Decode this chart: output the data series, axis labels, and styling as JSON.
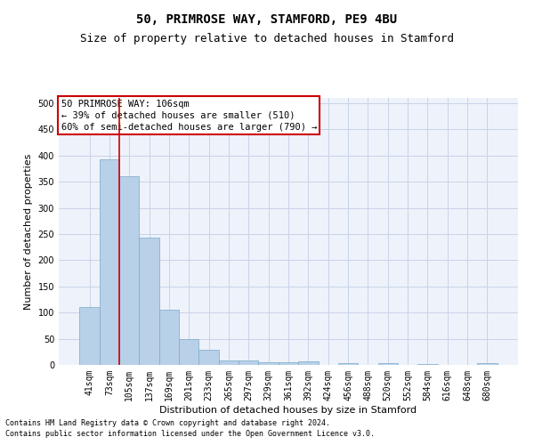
{
  "title1": "50, PRIMROSE WAY, STAMFORD, PE9 4BU",
  "title2": "Size of property relative to detached houses in Stamford",
  "xlabel": "Distribution of detached houses by size in Stamford",
  "ylabel": "Number of detached properties",
  "bar_labels": [
    "41sqm",
    "73sqm",
    "105sqm",
    "137sqm",
    "169sqm",
    "201sqm",
    "233sqm",
    "265sqm",
    "297sqm",
    "329sqm",
    "361sqm",
    "392sqm",
    "424sqm",
    "456sqm",
    "488sqm",
    "520sqm",
    "552sqm",
    "584sqm",
    "616sqm",
    "648sqm",
    "680sqm"
  ],
  "bar_values": [
    110,
    393,
    360,
    243,
    105,
    50,
    29,
    9,
    8,
    5,
    5,
    7,
    0,
    3,
    0,
    3,
    0,
    2,
    0,
    0,
    3
  ],
  "bar_color": "#b8d0e8",
  "bar_edge_color": "#7aaac8",
  "vline_color": "#cc0000",
  "annotation_text": "50 PRIMROSE WAY: 106sqm\n← 39% of detached houses are smaller (510)\n60% of semi-detached houses are larger (790) →",
  "annotation_box_color": "#ffffff",
  "annotation_box_edge_color": "#cc0000",
  "ylim": [
    0,
    510
  ],
  "yticks": [
    0,
    50,
    100,
    150,
    200,
    250,
    300,
    350,
    400,
    450,
    500
  ],
  "background_color": "#eef2fa",
  "grid_color": "#c8d4e8",
  "footer1": "Contains HM Land Registry data © Crown copyright and database right 2024.",
  "footer2": "Contains public sector information licensed under the Open Government Licence v3.0.",
  "title1_fontsize": 10,
  "title2_fontsize": 9,
  "xlabel_fontsize": 8,
  "ylabel_fontsize": 8,
  "tick_fontsize": 7,
  "annotation_fontsize": 7.5,
  "footer_fontsize": 6
}
